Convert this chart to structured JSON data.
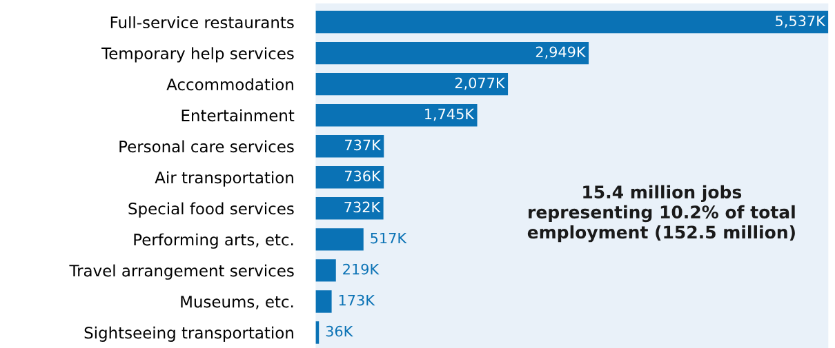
{
  "chart_data": {
    "type": "bar",
    "orientation": "horizontal",
    "color": "#0a72b5",
    "categories": [
      "Full-service restaurants",
      "Temporary help services",
      "Accommodation",
      "Entertainment",
      "Personal care services",
      "Air transportation",
      "Special food services",
      "Performing arts, etc.",
      "Travel arrangement services",
      "Museums, etc.",
      "Sightseeing transportation"
    ],
    "values": [
      5537,
      2949,
      2077,
      1745,
      737,
      736,
      732,
      517,
      219,
      173,
      36
    ],
    "value_labels": [
      "5,537K",
      "2,949K",
      "2,077K",
      "1,745K",
      "737K",
      "736K",
      "732K",
      "517K",
      "219K",
      "173K",
      "36K"
    ],
    "annotations": [
      "15.4 million jobs\nrepresenting 10.2% of total\nemployment (152.5 million)"
    ],
    "grid": false,
    "legend": false
  }
}
